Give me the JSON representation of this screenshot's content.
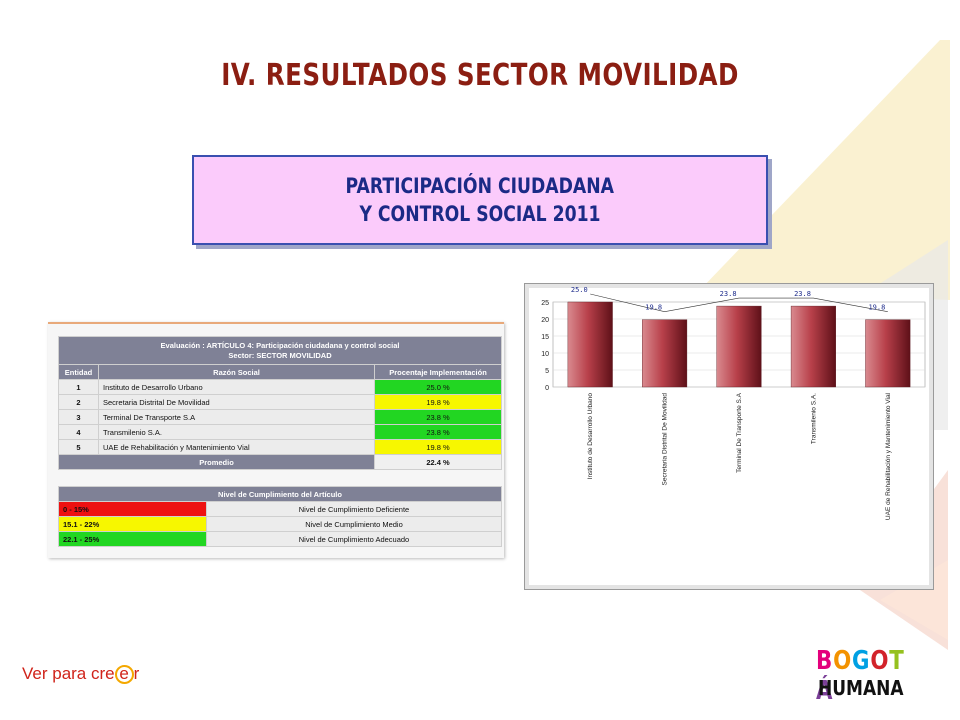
{
  "slide": {
    "title": "IV. RESULTADOS SECTOR MOVILIDAD",
    "subtitle_line1": "PARTICIPACIÓN CIUDADANA",
    "subtitle_line2": "Y CONTROL SOCIAL 2011",
    "tagline": "Ver para cre",
    "tagline_circle": "e",
    "tagline_end": "r",
    "logo_letters": [
      "B",
      "O",
      "G",
      "O",
      "T",
      "Á"
    ],
    "logo_colors": [
      "#e4007c",
      "#f39200",
      "#00a0e3",
      "#d2232a",
      "#95c11f",
      "#7b3f98"
    ],
    "logo_line2": "HUMANA"
  },
  "table": {
    "title_line1": "Evaluación : ARTÍCULO 4: Participación ciudadana y control social",
    "title_line2": "Sector: SECTOR MOVILIDAD",
    "columns": [
      "Entidad",
      "Razón Social",
      "Procentaje Implementación"
    ],
    "rows": [
      {
        "num": "1",
        "name": "Instituto de Desarrollo Urbano",
        "pct": "25.0 %",
        "status": "green"
      },
      {
        "num": "2",
        "name": "Secretaria Distrital De Movilidad",
        "pct": "19.8 %",
        "status": "yellow"
      },
      {
        "num": "3",
        "name": "Terminal De Transporte S.A",
        "pct": "23.8 %",
        "status": "green"
      },
      {
        "num": "4",
        "name": "Transmilenio S.A.",
        "pct": "23.8 %",
        "status": "green"
      },
      {
        "num": "5",
        "name": "UAE de Rehabilitación y Mantenimiento Vial",
        "pct": "19.8 %",
        "status": "yellow"
      }
    ],
    "average_label": "Promedio",
    "average_value": "22.4 %"
  },
  "levels": {
    "title": "Nivel de Cumplimiento del Artículo",
    "rows": [
      {
        "range": "0 - 15%",
        "label": "Nivel de Cumplimiento Deficiente",
        "color": "red"
      },
      {
        "range": "15.1 - 22%",
        "label": "Nivel de Cumplimiento Medio",
        "color": "yellow"
      },
      {
        "range": "22.1 - 25%",
        "label": "Nivel de Cumplimiento Adecuado",
        "color": "green"
      }
    ]
  },
  "chart_data": {
    "type": "bar",
    "categories": [
      "Instituto de Desarrollo Urbano",
      "Secretaria Distrital De Movilidad",
      "Terminal De Transporte S.A",
      "Transmilenio S.A.",
      "UAE de Rehabilitación y Mantenimiento Vial"
    ],
    "values": [
      25.0,
      19.8,
      23.8,
      23.8,
      19.8
    ],
    "value_labels": [
      "25.0",
      "19.8",
      "23.8",
      "23.8",
      "19.8"
    ],
    "yticks": [
      0,
      5,
      10,
      15,
      20,
      25
    ],
    "ylim": [
      0,
      25
    ],
    "bar_color": "#b8404a",
    "title": "",
    "xlabel": "",
    "ylabel": ""
  }
}
